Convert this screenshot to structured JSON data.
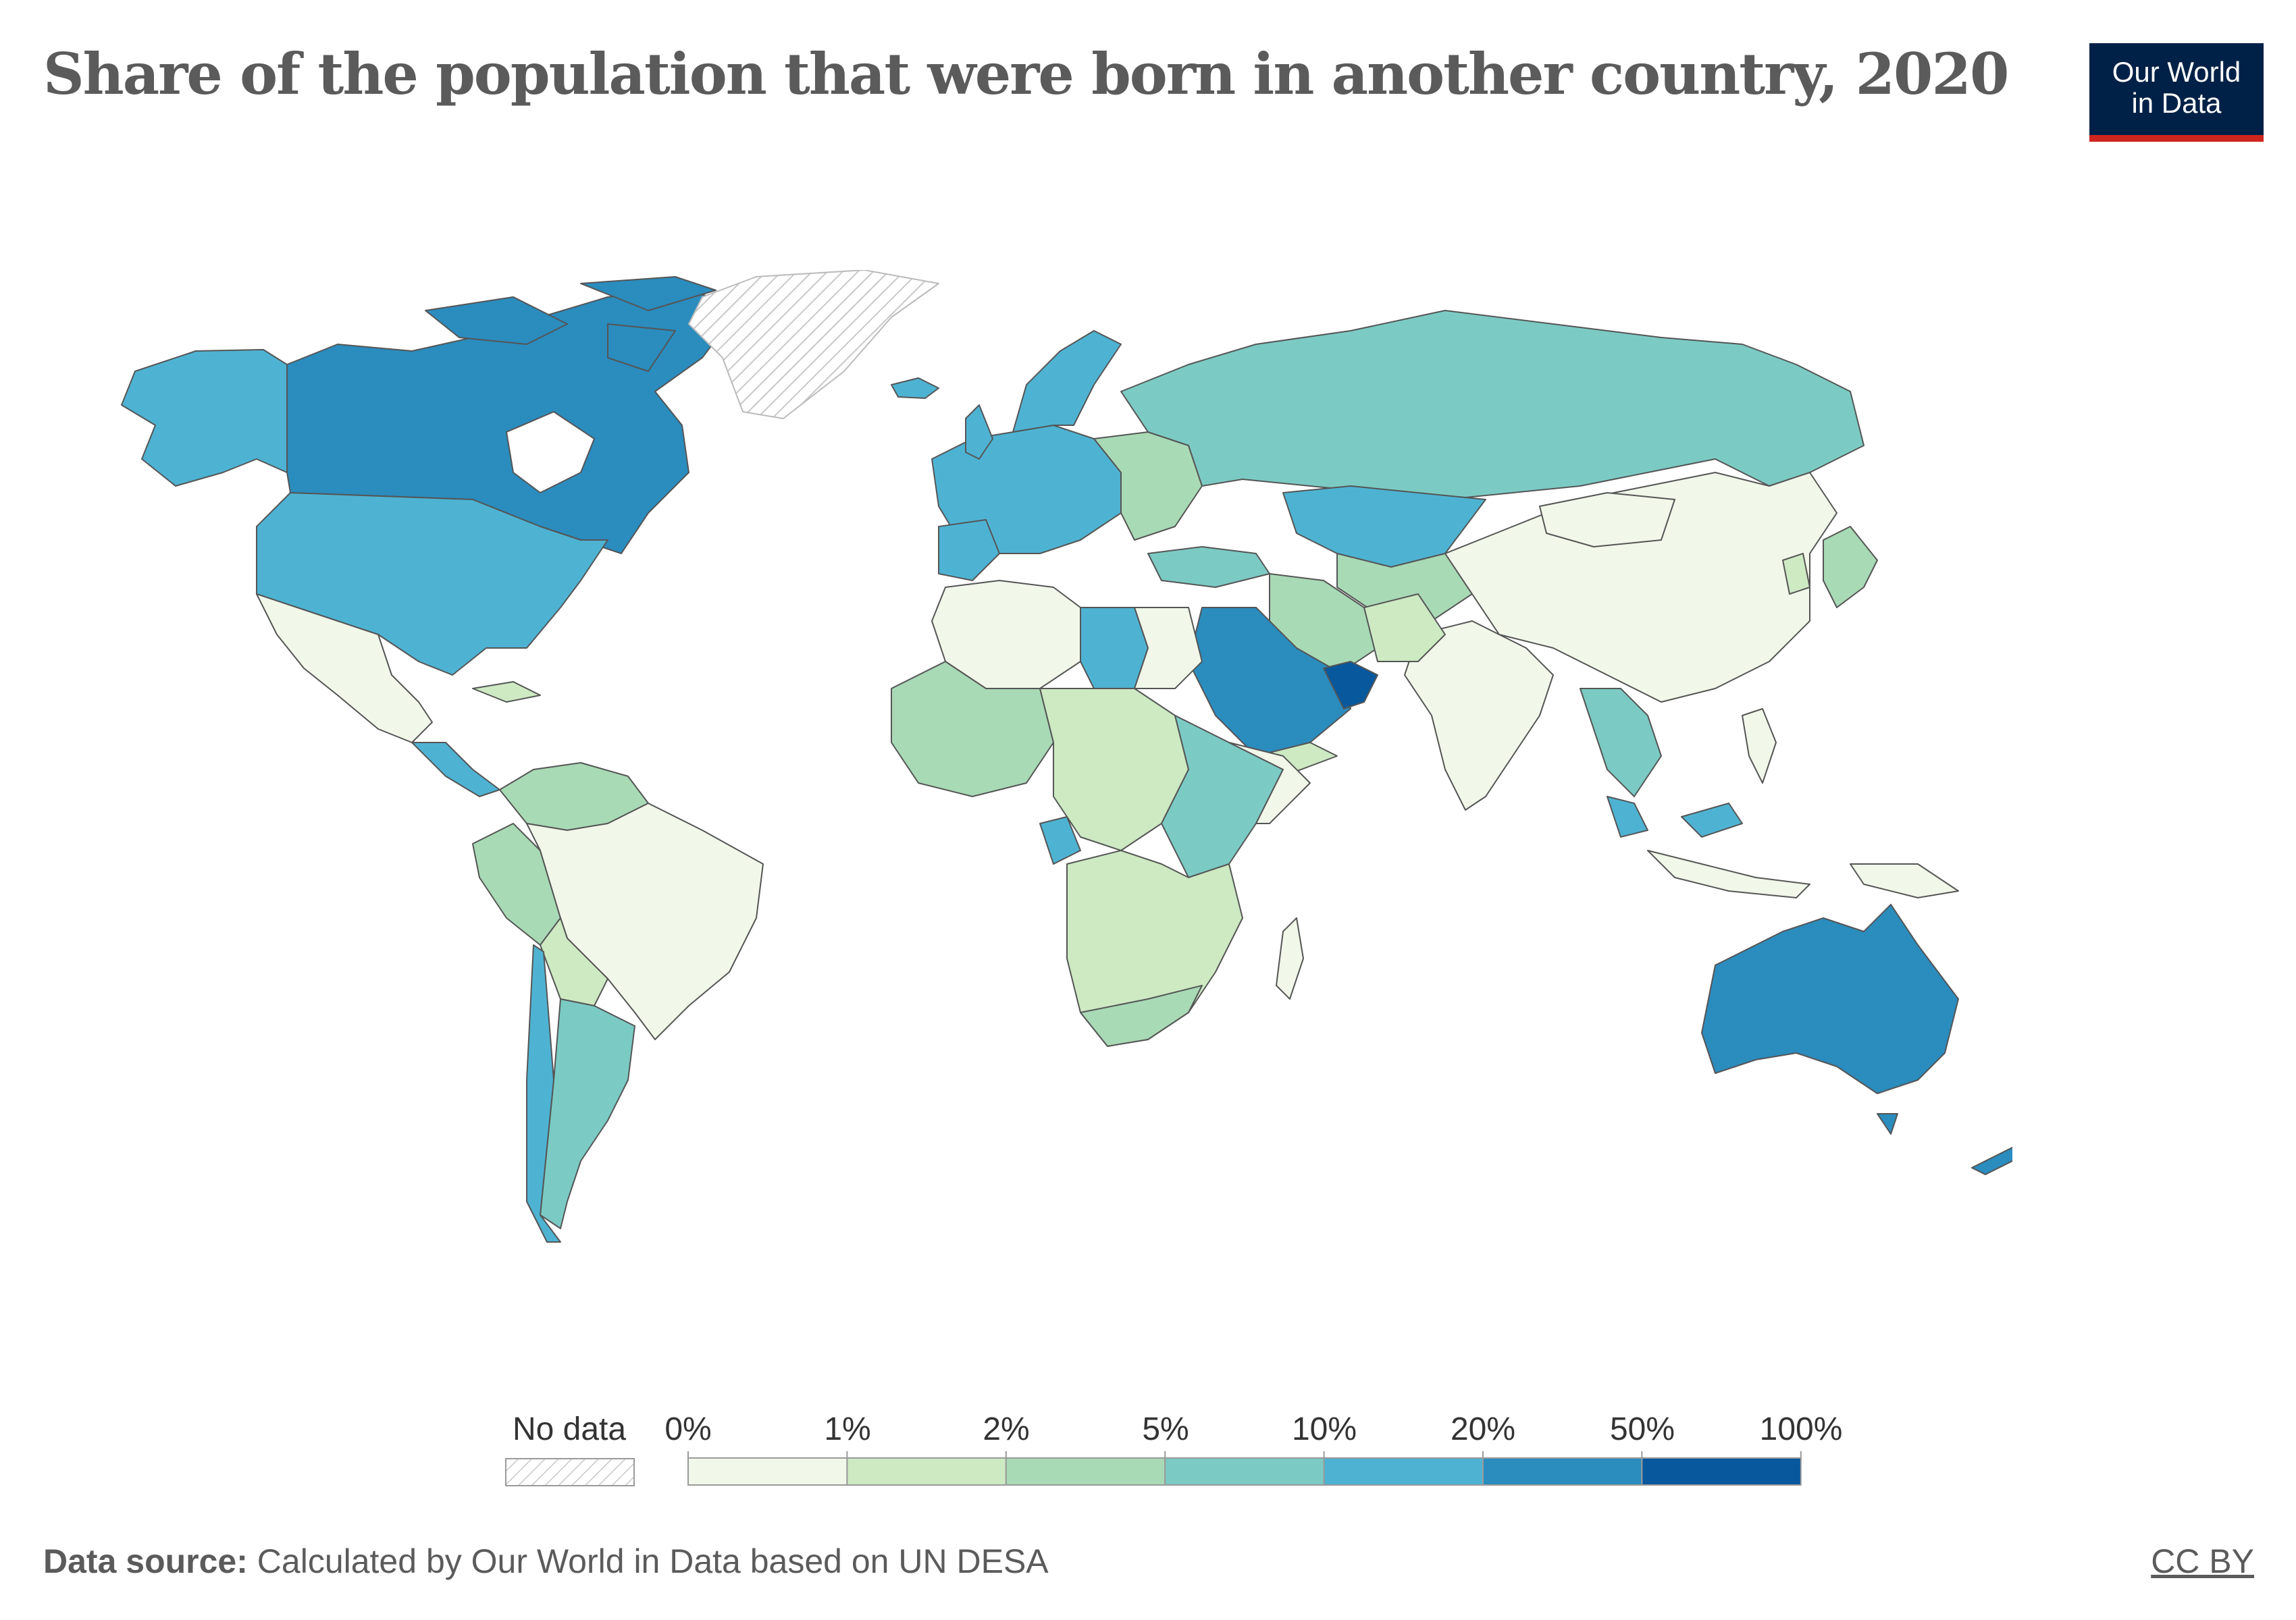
{
  "title": "Share of the population that were born in another country, 2020",
  "logo": {
    "line1": "Our World",
    "line2": "in Data"
  },
  "legend": {
    "no_data_label": "No data",
    "ticks": [
      "0%",
      "1%",
      "2%",
      "5%",
      "10%",
      "20%",
      "50%",
      "100%"
    ],
    "bins": [
      {
        "from": "0%",
        "to": "1%",
        "color": "#f1f7e9"
      },
      {
        "from": "1%",
        "to": "2%",
        "color": "#cdeac3"
      },
      {
        "from": "2%",
        "to": "5%",
        "color": "#a8dab5"
      },
      {
        "from": "5%",
        "to": "10%",
        "color": "#7bcbc4"
      },
      {
        "from": "10%",
        "to": "20%",
        "color": "#4eb3d3"
      },
      {
        "from": "20%",
        "to": "50%",
        "color": "#2b8cbe"
      },
      {
        "from": "50%",
        "to": "100%",
        "color": "#08589e"
      }
    ]
  },
  "footer": {
    "source_label": "Data source:",
    "source_text": "Calculated by Our World in Data based on UN DESA",
    "license": "CC BY"
  },
  "map_regions": [
    {
      "name": "Canada",
      "color": "#2b8cbe"
    },
    {
      "name": "United States",
      "color": "#4eb3d3"
    },
    {
      "name": "Alaska",
      "color": "#4eb3d3"
    },
    {
      "name": "Greenland",
      "color": "no-data"
    },
    {
      "name": "Mexico",
      "color": "#f1f7e9"
    },
    {
      "name": "Central America",
      "color": "#cdeac3"
    },
    {
      "name": "Brazil",
      "color": "#f1f7e9"
    },
    {
      "name": "Argentina",
      "color": "#7bcbc4"
    },
    {
      "name": "Chile",
      "color": "#4eb3d3"
    },
    {
      "name": "Russia",
      "color": "#7bcbc4"
    },
    {
      "name": "China",
      "color": "#f1f7e9"
    },
    {
      "name": "India",
      "color": "#f1f7e9"
    },
    {
      "name": "Kazakhstan",
      "color": "#4eb3d3"
    },
    {
      "name": "Saudi Arabia",
      "color": "#2b8cbe"
    },
    {
      "name": "Libya",
      "color": "#4eb3d3"
    },
    {
      "name": "Australia",
      "color": "#2b8cbe"
    },
    {
      "name": "New Zealand",
      "color": "#2b8cbe"
    },
    {
      "name": "Europe",
      "color": "#4eb3d3"
    }
  ]
}
